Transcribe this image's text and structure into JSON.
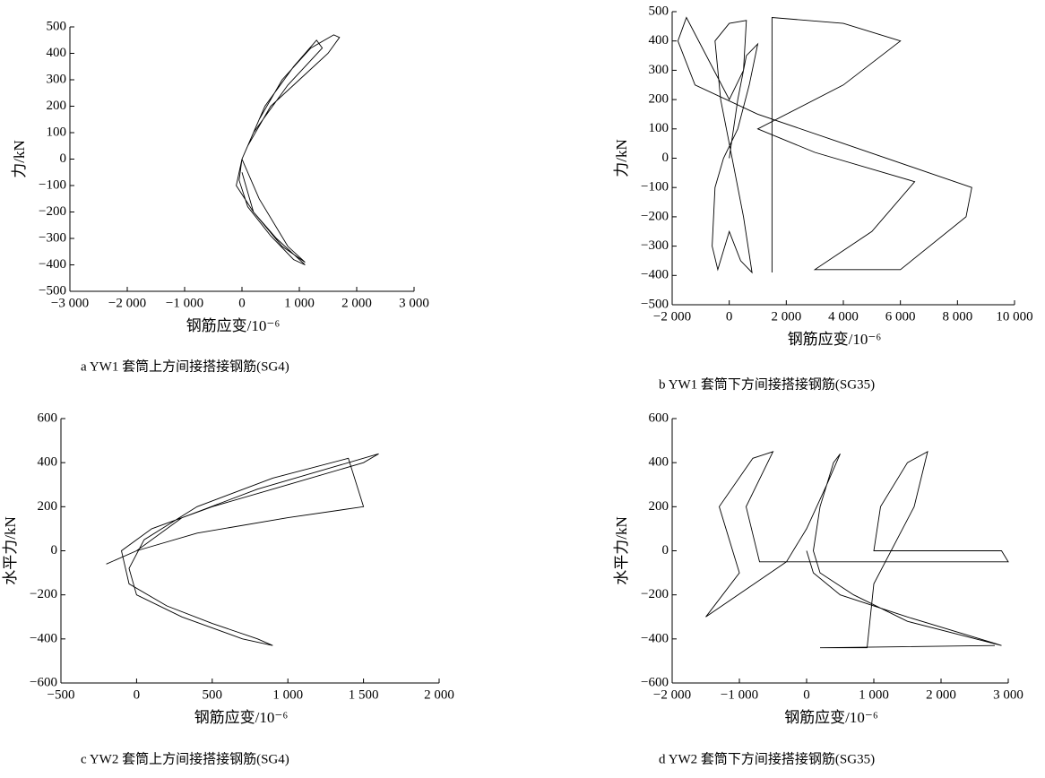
{
  "chart_data": [
    {
      "type": "line",
      "color": "#000000",
      "xlabel": "钢筋应变/10⁻⁶",
      "ylabel": "力/kN",
      "caption": "a YW1 套筒上方间接搭接钢筋(SG4)",
      "xlim": [
        -3000,
        3000
      ],
      "ylim": [
        -500,
        500
      ],
      "xticks": [
        {
          "value": -3000,
          "label": "−3 000"
        },
        {
          "value": -2000,
          "label": "−2 000"
        },
        {
          "value": -1000,
          "label": "−1 000"
        },
        0,
        {
          "value": 1000,
          "label": "1 000"
        },
        {
          "value": 2000,
          "label": "2 000"
        },
        {
          "value": 3000,
          "label": "3 000"
        }
      ],
      "yticks": [
        {
          "value": -500,
          "label": "−500"
        },
        {
          "value": -400,
          "label": "−400"
        },
        {
          "value": -300,
          "label": "−300"
        },
        {
          "value": -200,
          "label": "−200"
        },
        {
          "value": -100,
          "label": "−100"
        },
        0,
        100,
        200,
        300,
        400,
        500
      ],
      "x": [
        0,
        300,
        700,
        1200,
        1600,
        1700,
        1500,
        1000,
        500,
        100,
        0,
        -100,
        200,
        600,
        1000,
        1100,
        900,
        500,
        100,
        -50,
        0,
        400,
        900,
        1300,
        1400,
        800,
        200,
        0,
        300,
        800,
        1100,
        700,
        200,
        0
      ],
      "values": [
        0,
        150,
        300,
        420,
        470,
        460,
        400,
        300,
        200,
        50,
        0,
        -100,
        -200,
        -300,
        -380,
        -400,
        -380,
        -290,
        -180,
        -80,
        0,
        200,
        350,
        450,
        420,
        280,
        100,
        0,
        -150,
        -330,
        -390,
        -330,
        -200,
        -50
      ]
    },
    {
      "type": "line",
      "color": "#000000",
      "xlabel": "钢筋应变/10⁻⁶",
      "ylabel": "力/kN",
      "caption": "b YW1 套筒下方间接搭接钢筋(SG35)",
      "xlim": [
        -2000,
        10000
      ],
      "ylim": [
        -500,
        500
      ],
      "xticks": [
        {
          "value": -2000,
          "label": "−2 000"
        },
        0,
        {
          "value": 2000,
          "label": "2 000"
        },
        {
          "value": 4000,
          "label": "4 000"
        },
        {
          "value": 6000,
          "label": "6 000"
        },
        {
          "value": 8000,
          "label": "8 000"
        },
        {
          "value": 10000,
          "label": "10 000"
        }
      ],
      "yticks": [
        {
          "value": -500,
          "label": "−500"
        },
        {
          "value": -400,
          "label": "−400"
        },
        {
          "value": -300,
          "label": "−300"
        },
        {
          "value": -200,
          "label": "−200"
        },
        {
          "value": -100,
          "label": "−100"
        },
        0,
        100,
        200,
        300,
        400,
        500
      ],
      "x": [
        0,
        300,
        600,
        1000,
        700,
        300,
        -200,
        -500,
        -600,
        -400,
        0,
        400,
        800,
        500,
        0,
        -300,
        -500,
        0,
        600,
        500,
        0,
        -1500,
        -1800,
        -1200,
        1000,
        4000,
        7000,
        8500,
        8300,
        6000,
        3000,
        5000,
        6500,
        3000,
        1000,
        4000,
        6000,
        4000,
        1500,
        1500
      ],
      "values": [
        0,
        200,
        350,
        390,
        250,
        100,
        0,
        -100,
        -300,
        -380,
        -250,
        -350,
        -390,
        -200,
        50,
        200,
        400,
        460,
        470,
        300,
        200,
        480,
        400,
        250,
        150,
        50,
        -50,
        -100,
        -200,
        -380,
        -380,
        -250,
        -80,
        20,
        100,
        250,
        400,
        460,
        480,
        -390
      ]
    },
    {
      "type": "line",
      "color": "#000000",
      "xlabel": "钢筋应变/10⁻⁶",
      "ylabel": "水平力/kN",
      "caption": "c YW2 套筒上方间接搭接钢筋(SG4)",
      "xlim": [
        -500,
        2000
      ],
      "ylim": [
        -600,
        600
      ],
      "xticks": [
        {
          "value": -500,
          "label": "−500"
        },
        0,
        500,
        {
          "value": 1000,
          "label": "1 000"
        },
        {
          "value": 1500,
          "label": "1 500"
        },
        {
          "value": 2000,
          "label": "2 000"
        }
      ],
      "yticks": [
        {
          "value": -600,
          "label": "−600"
        },
        {
          "value": -400,
          "label": "−400"
        },
        {
          "value": -200,
          "label": "−200"
        },
        0,
        200,
        400,
        600
      ],
      "x": [
        -200,
        0,
        300,
        800,
        1300,
        1600,
        1500,
        1000,
        500,
        100,
        -100,
        -50,
        200,
        500,
        800,
        900,
        700,
        300,
        0,
        -50,
        50,
        400,
        900,
        1400,
        1500,
        1000,
        400,
        0
      ],
      "values": [
        -60,
        0,
        150,
        280,
        380,
        440,
        400,
        300,
        200,
        100,
        0,
        -150,
        -250,
        -330,
        -400,
        -430,
        -400,
        -300,
        -200,
        -80,
        50,
        200,
        330,
        420,
        200,
        150,
        80,
        0
      ]
    },
    {
      "type": "line",
      "color": "#000000",
      "xlabel": "钢筋应变/10⁻⁶",
      "ylabel": "水平力/kN",
      "caption": "d YW2 套筒下方间接搭接钢筋(SG35)",
      "xlim": [
        -2000,
        3000
      ],
      "ylim": [
        -600,
        600
      ],
      "xticks": [
        {
          "value": -2000,
          "label": "−2 000"
        },
        {
          "value": -1000,
          "label": "−1 000"
        },
        0,
        {
          "value": 1000,
          "label": "1 000"
        },
        {
          "value": 2000,
          "label": "2 000"
        },
        {
          "value": 3000,
          "label": "3 000"
        }
      ],
      "yticks": [
        {
          "value": -600,
          "label": "−600"
        },
        {
          "value": -400,
          "label": "−400"
        },
        {
          "value": -200,
          "label": "−200"
        },
        0,
        200,
        400,
        600
      ],
      "x": [
        0,
        100,
        500,
        1500,
        2800,
        2900,
        1500,
        700,
        200,
        100,
        200,
        400,
        500,
        300,
        0,
        -300,
        -1500,
        -1000,
        -1300,
        -800,
        -500,
        -900,
        -700,
        3000,
        2900,
        1000,
        1100,
        1500,
        1800,
        1600,
        1000,
        900,
        200,
        2800
      ],
      "values": [
        0,
        -100,
        -200,
        -300,
        -420,
        -430,
        -320,
        -200,
        -100,
        0,
        200,
        400,
        440,
        300,
        100,
        -50,
        -300,
        -100,
        200,
        420,
        450,
        200,
        -50,
        -50,
        0,
        0,
        200,
        400,
        450,
        200,
        -150,
        -440,
        -440,
        -430
      ]
    }
  ]
}
